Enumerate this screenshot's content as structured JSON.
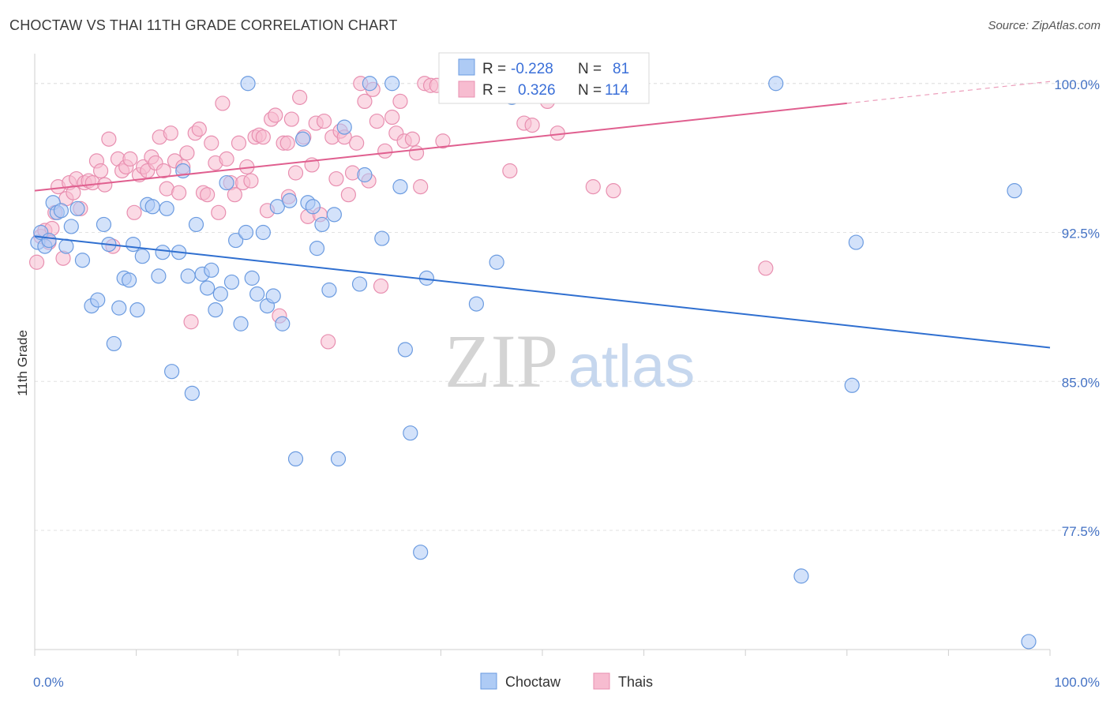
{
  "title": "CHOCTAW VS THAI 11TH GRADE CORRELATION CHART",
  "source": "Source: ZipAtlas.com",
  "watermark": {
    "zip": "ZIP",
    "atlas": "atlas"
  },
  "colors": {
    "choctaw_fill": "#aecbf5",
    "choctaw_stroke": "#6b9be0",
    "choctaw_line": "#2f6fd0",
    "thais_fill": "#f7bcd0",
    "thais_stroke": "#e88fb0",
    "thais_line": "#e05f8f",
    "grid": "#e2e2e2",
    "axis_label": "#4472c4"
  },
  "legend": {
    "r_label": "R =",
    "n_label": "N =",
    "entries": [
      {
        "r": "-0.228",
        "n": "81"
      },
      {
        "r": "0.326",
        "n": "114"
      }
    ]
  },
  "chart_data": {
    "type": "scatter",
    "title": "CHOCTAW VS THAI 11TH GRADE CORRELATION CHART",
    "xlabel": "",
    "ylabel": "11th Grade",
    "xlim": [
      0,
      100
    ],
    "ylim": [
      71.5,
      101.5
    ],
    "x_tick_labels": [
      "0.0%",
      "100.0%"
    ],
    "y_ticks": [
      100.0,
      92.5,
      85.0,
      77.5
    ],
    "y_tick_labels": [
      "100.0%",
      "92.5%",
      "85.0%",
      "77.5%"
    ],
    "grid": true,
    "legend_position": "top-center",
    "series": [
      {
        "name": "Choctaw",
        "trend": {
          "x0": 0,
          "y0": 92.3,
          "x1": 100,
          "y1": 86.7
        },
        "points": [
          [
            0.3,
            92.0
          ],
          [
            0.6,
            92.5
          ],
          [
            1.0,
            91.8
          ],
          [
            1.4,
            92.1
          ],
          [
            1.8,
            94.0
          ],
          [
            2.2,
            93.5
          ],
          [
            2.6,
            93.6
          ],
          [
            3.1,
            91.8
          ],
          [
            3.6,
            92.8
          ],
          [
            4.2,
            93.7
          ],
          [
            4.7,
            91.1
          ],
          [
            5.6,
            88.8
          ],
          [
            6.2,
            89.1
          ],
          [
            6.8,
            92.9
          ],
          [
            7.3,
            91.9
          ],
          [
            7.8,
            86.9
          ],
          [
            8.3,
            88.7
          ],
          [
            8.8,
            90.2
          ],
          [
            9.3,
            90.1
          ],
          [
            9.7,
            91.9
          ],
          [
            10.1,
            88.6
          ],
          [
            10.6,
            91.3
          ],
          [
            11.1,
            93.9
          ],
          [
            11.6,
            93.8
          ],
          [
            12.2,
            90.3
          ],
          [
            12.6,
            91.5
          ],
          [
            13.0,
            93.7
          ],
          [
            13.5,
            85.5
          ],
          [
            14.2,
            91.5
          ],
          [
            14.6,
            95.6
          ],
          [
            15.1,
            90.3
          ],
          [
            15.5,
            84.4
          ],
          [
            15.9,
            92.9
          ],
          [
            16.5,
            90.4
          ],
          [
            17.0,
            89.7
          ],
          [
            17.4,
            90.6
          ],
          [
            17.8,
            88.6
          ],
          [
            18.3,
            89.4
          ],
          [
            18.9,
            95.0
          ],
          [
            19.4,
            90.0
          ],
          [
            19.8,
            92.1
          ],
          [
            20.3,
            87.9
          ],
          [
            20.8,
            92.5
          ],
          [
            21.4,
            90.2
          ],
          [
            21.9,
            89.4
          ],
          [
            22.5,
            92.5
          ],
          [
            22.9,
            88.8
          ],
          [
            23.5,
            89.3
          ],
          [
            23.9,
            93.8
          ],
          [
            24.4,
            87.9
          ],
          [
            25.1,
            94.1
          ],
          [
            25.7,
            81.1
          ],
          [
            26.4,
            97.2
          ],
          [
            26.9,
            94.0
          ],
          [
            27.4,
            93.8
          ],
          [
            27.8,
            91.7
          ],
          [
            28.3,
            92.9
          ],
          [
            29.0,
            89.6
          ],
          [
            29.5,
            93.4
          ],
          [
            29.9,
            81.1
          ],
          [
            30.5,
            97.8
          ],
          [
            32.0,
            89.9
          ],
          [
            32.5,
            95.4
          ],
          [
            33.0,
            100.0
          ],
          [
            34.2,
            92.2
          ],
          [
            35.2,
            100.0
          ],
          [
            36.0,
            94.8
          ],
          [
            36.5,
            86.6
          ],
          [
            37.0,
            82.4
          ],
          [
            38.0,
            76.4
          ],
          [
            38.6,
            90.2
          ],
          [
            43.5,
            88.9
          ],
          [
            45.5,
            91.0
          ],
          [
            47.0,
            99.3
          ],
          [
            21.0,
            100.0
          ],
          [
            73.0,
            100.0
          ],
          [
            75.5,
            75.2
          ],
          [
            80.5,
            84.8
          ],
          [
            80.9,
            92.0
          ],
          [
            96.5,
            94.6
          ],
          [
            97.9,
            71.9
          ]
        ]
      },
      {
        "name": "Thais",
        "trend": {
          "x0": 0,
          "y0": 94.6,
          "x1": 100,
          "y1": 100.1
        },
        "points": [
          [
            0.2,
            91.0
          ],
          [
            0.6,
            92.3
          ],
          [
            1.0,
            92.6
          ],
          [
            1.4,
            92.0
          ],
          [
            1.7,
            92.7
          ],
          [
            2.0,
            93.5
          ],
          [
            2.3,
            94.8
          ],
          [
            2.8,
            91.2
          ],
          [
            3.1,
            94.2
          ],
          [
            3.4,
            95.0
          ],
          [
            3.8,
            94.5
          ],
          [
            4.1,
            95.2
          ],
          [
            4.5,
            93.7
          ],
          [
            4.9,
            95.0
          ],
          [
            5.3,
            95.1
          ],
          [
            5.7,
            95.0
          ],
          [
            6.1,
            96.1
          ],
          [
            6.5,
            95.6
          ],
          [
            6.9,
            94.9
          ],
          [
            7.3,
            97.2
          ],
          [
            7.7,
            91.8
          ],
          [
            8.2,
            96.2
          ],
          [
            8.6,
            95.6
          ],
          [
            9.0,
            95.8
          ],
          [
            9.4,
            96.2
          ],
          [
            9.8,
            93.5
          ],
          [
            10.3,
            95.4
          ],
          [
            10.7,
            95.8
          ],
          [
            11.1,
            95.6
          ],
          [
            11.5,
            96.3
          ],
          [
            11.9,
            96.0
          ],
          [
            12.3,
            97.3
          ],
          [
            12.7,
            95.6
          ],
          [
            13.0,
            94.7
          ],
          [
            13.4,
            97.5
          ],
          [
            13.8,
            96.1
          ],
          [
            14.2,
            94.5
          ],
          [
            14.6,
            95.8
          ],
          [
            15.0,
            96.5
          ],
          [
            15.4,
            88.0
          ],
          [
            15.8,
            97.5
          ],
          [
            16.2,
            97.7
          ],
          [
            16.6,
            94.5
          ],
          [
            17.0,
            94.4
          ],
          [
            17.4,
            97.0
          ],
          [
            17.8,
            96.0
          ],
          [
            18.1,
            93.5
          ],
          [
            18.5,
            99.0
          ],
          [
            18.9,
            96.2
          ],
          [
            19.3,
            95.0
          ],
          [
            19.7,
            94.4
          ],
          [
            20.1,
            97.0
          ],
          [
            20.5,
            95.0
          ],
          [
            20.9,
            95.8
          ],
          [
            21.3,
            95.1
          ],
          [
            21.7,
            97.3
          ],
          [
            22.1,
            97.4
          ],
          [
            22.5,
            97.3
          ],
          [
            22.9,
            93.6
          ],
          [
            23.3,
            98.2
          ],
          [
            23.7,
            98.4
          ],
          [
            24.1,
            88.3
          ],
          [
            24.5,
            97.0
          ],
          [
            24.9,
            97.0
          ],
          [
            25.3,
            98.2
          ],
          [
            25.7,
            95.5
          ],
          [
            26.1,
            99.3
          ],
          [
            26.5,
            97.3
          ],
          [
            26.9,
            93.3
          ],
          [
            27.3,
            95.9
          ],
          [
            27.7,
            98.0
          ],
          [
            28.1,
            93.4
          ],
          [
            28.5,
            98.1
          ],
          [
            28.9,
            87.0
          ],
          [
            29.3,
            97.3
          ],
          [
            29.7,
            95.2
          ],
          [
            30.1,
            97.6
          ],
          [
            30.5,
            97.3
          ],
          [
            30.9,
            94.4
          ],
          [
            31.3,
            95.5
          ],
          [
            31.7,
            97.0
          ],
          [
            32.1,
            100.0
          ],
          [
            32.5,
            99.1
          ],
          [
            32.9,
            95.1
          ],
          [
            33.3,
            99.7
          ],
          [
            33.7,
            98.1
          ],
          [
            34.1,
            89.8
          ],
          [
            34.5,
            96.6
          ],
          [
            35.2,
            98.3
          ],
          [
            35.6,
            97.5
          ],
          [
            36.0,
            99.1
          ],
          [
            36.4,
            97.1
          ],
          [
            37.2,
            97.2
          ],
          [
            37.6,
            96.5
          ],
          [
            38.0,
            94.8
          ],
          [
            38.4,
            100.0
          ],
          [
            39.0,
            99.9
          ],
          [
            39.6,
            99.9
          ],
          [
            40.2,
            97.1
          ],
          [
            40.8,
            99.8
          ],
          [
            41.6,
            99.9
          ],
          [
            42.2,
            99.6
          ],
          [
            43.0,
            99.8
          ],
          [
            44.2,
            99.6
          ],
          [
            45.0,
            99.4
          ],
          [
            46.8,
            95.6
          ],
          [
            48.2,
            98.0
          ],
          [
            49.0,
            97.9
          ],
          [
            50.5,
            99.1
          ],
          [
            51.5,
            97.5
          ],
          [
            55.0,
            94.8
          ],
          [
            57.0,
            94.6
          ],
          [
            72.0,
            90.7
          ],
          [
            25.0,
            94.3
          ]
        ]
      }
    ]
  },
  "bottom_legend": [
    "Choctaw",
    "Thais"
  ]
}
